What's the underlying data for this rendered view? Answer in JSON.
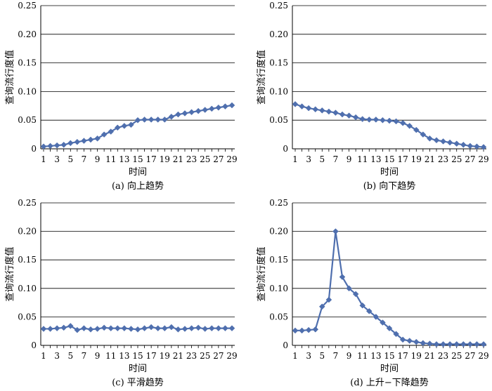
{
  "chart_data": [
    {
      "type": "line",
      "caption": "(a) 向上趋势",
      "xlabel": "时间",
      "ylabel": "查询流行度值",
      "ylim": [
        0,
        0.25
      ],
      "yticks": [
        "0",
        "0.05",
        "0.10",
        "0.15",
        "0.20",
        "0.25"
      ],
      "x": [
        1,
        2,
        3,
        4,
        5,
        6,
        7,
        8,
        9,
        10,
        11,
        12,
        13,
        14,
        15,
        16,
        17,
        18,
        19,
        20,
        21,
        22,
        23,
        24,
        25,
        26,
        27,
        28,
        29
      ],
      "xtick_labels": [
        "1",
        "3",
        "5",
        "7",
        "9",
        "11",
        "13",
        "15",
        "17",
        "19",
        "21",
        "23",
        "25",
        "27",
        "29"
      ],
      "grid": true,
      "color": "#4f6fae",
      "values": [
        0.004,
        0.005,
        0.006,
        0.007,
        0.01,
        0.012,
        0.014,
        0.016,
        0.018,
        0.025,
        0.03,
        0.037,
        0.04,
        0.042,
        0.05,
        0.051,
        0.051,
        0.051,
        0.051,
        0.056,
        0.06,
        0.062,
        0.064,
        0.066,
        0.068,
        0.07,
        0.072,
        0.074,
        0.076
      ]
    },
    {
      "type": "line",
      "caption": "(b) 向下趋势",
      "xlabel": "时间",
      "ylabel": "查询流行度值",
      "ylim": [
        0,
        0.25
      ],
      "yticks": [
        "0",
        "0.05",
        "0.10",
        "0.15",
        "0.20",
        "0.25"
      ],
      "x": [
        1,
        2,
        3,
        4,
        5,
        6,
        7,
        8,
        9,
        10,
        11,
        12,
        13,
        14,
        15,
        16,
        17,
        18,
        19,
        20,
        21,
        22,
        23,
        24,
        25,
        26,
        27,
        28,
        29
      ],
      "xtick_labels": [
        "1",
        "3",
        "5",
        "7",
        "9",
        "11",
        "13",
        "15",
        "17",
        "19",
        "21",
        "23",
        "25",
        "27",
        "29"
      ],
      "grid": true,
      "color": "#4f6fae",
      "values": [
        0.078,
        0.074,
        0.071,
        0.069,
        0.067,
        0.065,
        0.063,
        0.06,
        0.058,
        0.055,
        0.052,
        0.051,
        0.051,
        0.05,
        0.049,
        0.048,
        0.045,
        0.04,
        0.033,
        0.025,
        0.018,
        0.015,
        0.013,
        0.011,
        0.009,
        0.007,
        0.005,
        0.004,
        0.003
      ]
    },
    {
      "type": "line",
      "caption": "(c) 平滑趋势",
      "xlabel": "时间",
      "ylabel": "查询流行度值",
      "ylim": [
        0,
        0.25
      ],
      "yticks": [
        "0",
        "0.05",
        "0.10",
        "0.15",
        "0.20",
        "0.25"
      ],
      "x": [
        1,
        2,
        3,
        4,
        5,
        6,
        7,
        8,
        9,
        10,
        11,
        12,
        13,
        14,
        15,
        16,
        17,
        18,
        19,
        20,
        21,
        22,
        23,
        24,
        25,
        26,
        27,
        28,
        29
      ],
      "xtick_labels": [
        "1",
        "3",
        "5",
        "7",
        "9",
        "11",
        "13",
        "15",
        "17",
        "19",
        "21",
        "23",
        "25",
        "27",
        "29"
      ],
      "grid": true,
      "color": "#4f6fae",
      "values": [
        0.029,
        0.029,
        0.03,
        0.031,
        0.034,
        0.027,
        0.03,
        0.028,
        0.029,
        0.031,
        0.03,
        0.03,
        0.03,
        0.029,
        0.028,
        0.03,
        0.032,
        0.03,
        0.03,
        0.032,
        0.028,
        0.029,
        0.03,
        0.031,
        0.029,
        0.03,
        0.03,
        0.03,
        0.03
      ]
    },
    {
      "type": "line",
      "caption": "(d) 上升−下降趋势",
      "xlabel": "时间",
      "ylabel": "查询流行度值",
      "ylim": [
        0,
        0.25
      ],
      "yticks": [
        "0",
        "0.05",
        "0.10",
        "0.15",
        "0.20",
        "0.25"
      ],
      "x": [
        1,
        2,
        3,
        4,
        5,
        6,
        7,
        8,
        9,
        10,
        11,
        12,
        13,
        14,
        15,
        16,
        17,
        18,
        19,
        20,
        21,
        22,
        23,
        24,
        25,
        26,
        27,
        28,
        29
      ],
      "xtick_labels": [
        "1",
        "3",
        "5",
        "7",
        "9",
        "11",
        "13",
        "15",
        "17",
        "19",
        "21",
        "23",
        "25",
        "27",
        "29"
      ],
      "grid": true,
      "color": "#4f6fae",
      "values": [
        0.026,
        0.026,
        0.027,
        0.028,
        0.068,
        0.08,
        0.2,
        0.12,
        0.1,
        0.09,
        0.07,
        0.06,
        0.05,
        0.04,
        0.03,
        0.02,
        0.01,
        0.008,
        0.006,
        0.004,
        0.003,
        0.002,
        0.002,
        0.002,
        0.002,
        0.002,
        0.002,
        0.002,
        0.002
      ]
    }
  ]
}
